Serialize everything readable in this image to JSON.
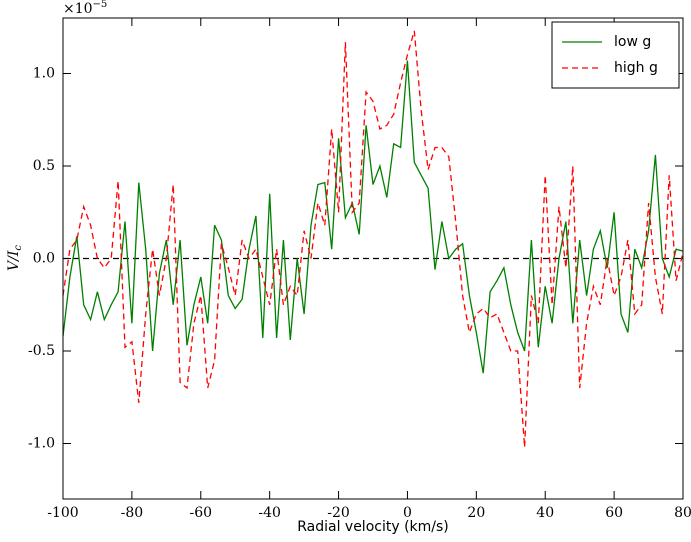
{
  "chart_data": {
    "type": "line",
    "x_label": "Radial velocity (km/s)",
    "y_label": {
      "text": "V/I",
      "subscript": "c"
    },
    "y_offset": {
      "base": "×10",
      "exponent": "−5"
    },
    "x": [
      -100,
      -98,
      -96,
      -94,
      -92,
      -90,
      -88,
      -86,
      -84,
      -82,
      -80,
      -78,
      -76,
      -74,
      -72,
      -70,
      -68,
      -66,
      -64,
      -62,
      -60,
      -58,
      -56,
      -54,
      -52,
      -50,
      -48,
      -46,
      -44,
      -42,
      -40,
      -38,
      -36,
      -34,
      -32,
      -30,
      -28,
      -26,
      -24,
      -22,
      -20,
      -18,
      -16,
      -14,
      -12,
      -10,
      -8,
      -6,
      -4,
      -2,
      0,
      2,
      4,
      6,
      8,
      10,
      12,
      14,
      16,
      18,
      20,
      22,
      24,
      26,
      28,
      30,
      32,
      34,
      36,
      38,
      40,
      42,
      44,
      46,
      48,
      50,
      52,
      54,
      56,
      58,
      60,
      62,
      64,
      66,
      68,
      70,
      72,
      74,
      76,
      78,
      80
    ],
    "series": [
      {
        "name": "low g",
        "color": "#008000",
        "dash": false,
        "values": [
          -0.42,
          -0.1,
          0.12,
          -0.25,
          -0.33,
          -0.18,
          -0.33,
          -0.25,
          -0.18,
          0.2,
          -0.35,
          0.41,
          0.05,
          -0.5,
          -0.08,
          0.1,
          -0.25,
          0.1,
          -0.47,
          -0.25,
          -0.1,
          -0.35,
          0.18,
          0.1,
          -0.2,
          -0.27,
          -0.22,
          0.05,
          0.23,
          -0.43,
          0.35,
          -0.43,
          0.1,
          -0.44,
          0.0,
          -0.3,
          0.18,
          0.4,
          0.41,
          0.05,
          0.65,
          0.22,
          0.3,
          0.13,
          0.72,
          0.4,
          0.5,
          0.33,
          0.62,
          0.6,
          1.07,
          0.52,
          0.45,
          0.38,
          -0.06,
          0.2,
          0.0,
          0.05,
          0.08,
          -0.2,
          -0.4,
          -0.62,
          -0.18,
          -0.12,
          -0.05,
          -0.25,
          -0.4,
          -0.5,
          0.1,
          -0.48,
          -0.15,
          -0.35,
          0.0,
          0.2,
          -0.35,
          0.1,
          -0.2,
          0.05,
          0.15,
          -0.05,
          0.25,
          -0.3,
          -0.4,
          0.05,
          -0.05,
          0.15,
          0.56,
          0.0,
          -0.1,
          0.05,
          0.04
        ]
      },
      {
        "name": "high g",
        "color": "#ff0000",
        "dash": true,
        "values": [
          -0.2,
          0.05,
          0.1,
          0.28,
          0.18,
          0.0,
          -0.05,
          0.0,
          0.42,
          -0.48,
          -0.45,
          -0.78,
          -0.3,
          0.05,
          -0.2,
          0.0,
          0.4,
          -0.67,
          -0.7,
          -0.35,
          -0.2,
          -0.7,
          -0.55,
          0.08,
          -0.05,
          -0.2,
          0.1,
          0.0,
          0.05,
          -0.1,
          -0.25,
          0.05,
          -0.25,
          -0.15,
          -0.2,
          0.15,
          0.0,
          0.3,
          0.18,
          0.7,
          0.25,
          1.17,
          0.25,
          0.3,
          0.9,
          0.85,
          0.7,
          0.72,
          0.78,
          0.95,
          1.1,
          1.23,
          0.8,
          0.48,
          0.6,
          0.6,
          0.55,
          0.2,
          -0.2,
          -0.4,
          -0.3,
          -0.27,
          -0.32,
          -0.3,
          -0.4,
          -0.5,
          -0.5,
          -1.02,
          -0.2,
          -0.35,
          0.45,
          -0.25,
          0.28,
          -0.05,
          0.5,
          -0.7,
          -0.35,
          -0.15,
          -0.25,
          0.0,
          -0.2,
          -0.1,
          0.1,
          -0.3,
          -0.25,
          0.3,
          -0.1,
          -0.3,
          0.45,
          -0.12,
          0.03
        ]
      }
    ],
    "hline": 0,
    "xlim": [
      -100,
      80
    ],
    "xticks": [
      -100,
      -80,
      -60,
      -40,
      -20,
      0,
      20,
      40,
      60,
      80
    ],
    "ylim": [
      -1.3,
      1.3
    ],
    "yticks": [
      {
        "value": -1,
        "label": "-1.0"
      },
      -0.5,
      {
        "value": 0,
        "label": "0.0"
      },
      0.5,
      {
        "value": 1,
        "label": "1.0"
      }
    ],
    "legend": "upper right"
  }
}
